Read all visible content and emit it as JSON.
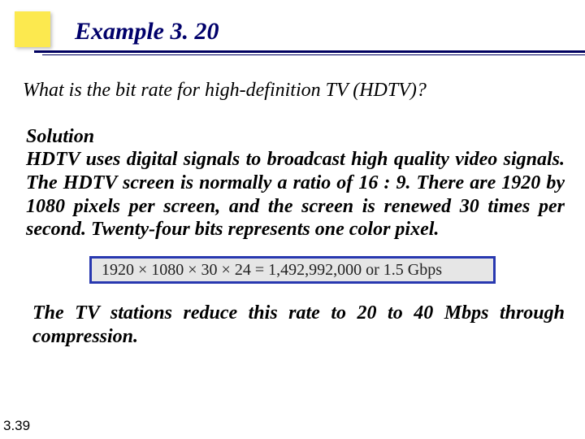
{
  "title": "Example 3. 20",
  "question": "What is the bit rate for high-definition TV (HDTV)?",
  "solution_label": "Solution",
  "solution_body": "HDTV uses digital signals to broadcast high quality video signals. The HDTV screen is normally a ratio of 16 : 9. There are 1920 by 1080 pixels per screen, and the screen is renewed 30 times per second. Twenty-four bits represents one color pixel.",
  "equation": "1920 × 1080 × 30 × 24 = 1,492,992,000 or 1.5 Gbps",
  "followup": "The TV stations reduce this rate to 20 to 40 Mbps through compression.",
  "page_number": "3.39",
  "colors": {
    "title_color": "#00006a",
    "rule_color": "#000060",
    "accent_square": "#fce94f",
    "equation_border": "#2838b0",
    "equation_bg": "#e6e6e6"
  }
}
